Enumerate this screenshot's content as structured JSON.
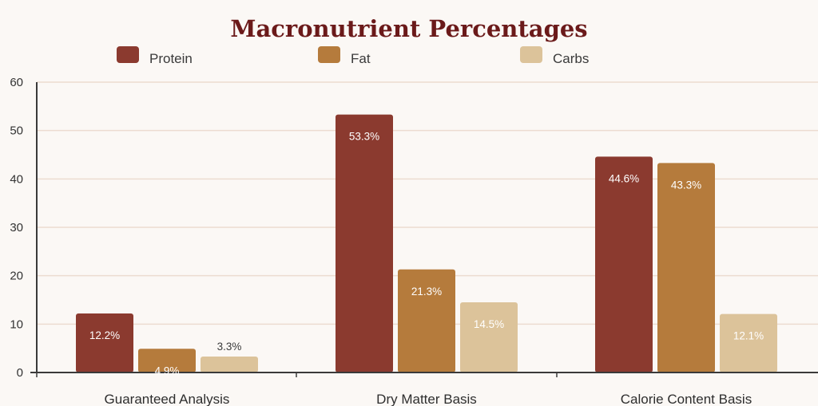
{
  "chart_data": {
    "type": "bar",
    "title": "Macronutrient Percentages",
    "categories": [
      "Guaranteed Analysis",
      "Dry Matter Basis",
      "Calorie Content Basis"
    ],
    "series": [
      {
        "name": "Protein",
        "values": [
          12.2,
          53.3,
          44.6
        ],
        "labels": [
          "12.2%",
          "53.3%",
          "44.6%"
        ],
        "color": "#8b3a2f"
      },
      {
        "name": "Fat",
        "values": [
          4.9,
          21.3,
          43.3
        ],
        "labels": [
          "4.9%",
          "21.3%",
          "43.3%"
        ],
        "color": "#b57b3c"
      },
      {
        "name": "Carbs",
        "values": [
          3.3,
          14.5,
          12.1
        ],
        "labels": [
          "3.3%",
          "14.5%",
          "12.1%"
        ],
        "color": "#dcc39a"
      }
    ],
    "ylim": [
      0,
      60
    ],
    "yticks": [
      0,
      10,
      20,
      30,
      40,
      50,
      60
    ],
    "grid": true,
    "legend_position": "top"
  },
  "colors": {
    "background": "#fbf8f5",
    "grid": "#ecdcd0",
    "axis": "#3a3a3a",
    "title": "#6b1a1a"
  }
}
